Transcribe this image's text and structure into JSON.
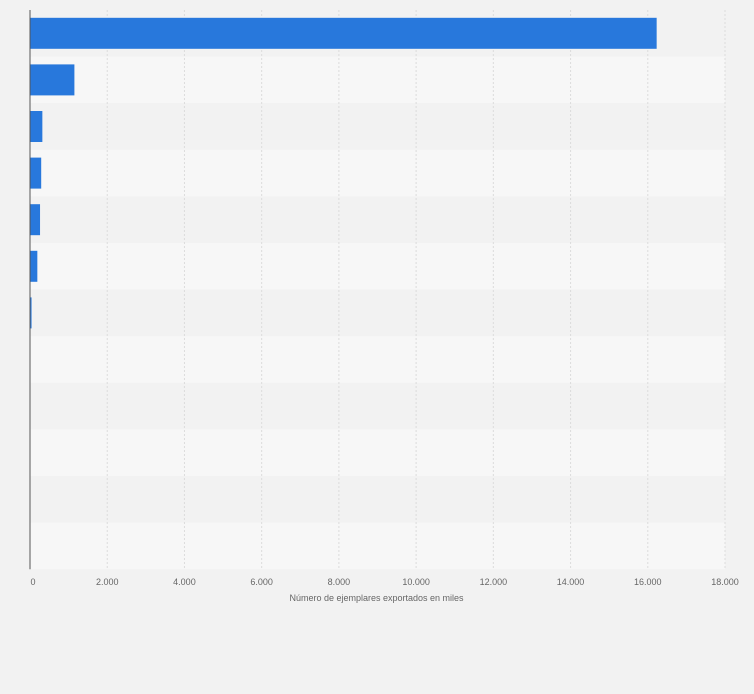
{
  "chart_data": {
    "type": "bar",
    "orientation": "horizontal",
    "categories": [
      "",
      "",
      "",
      "",
      "",
      "",
      "",
      "",
      "",
      "",
      "",
      ""
    ],
    "values": [
      16230,
      1150,
      320,
      290,
      260,
      190,
      40,
      0,
      0,
      0,
      0,
      0
    ],
    "xlabel": "Número de ejemplares exportados en miles",
    "xlim": [
      0,
      18000
    ],
    "x_ticks": [
      0,
      2000,
      4000,
      6000,
      8000,
      10000,
      12000,
      14000,
      16000,
      18000
    ],
    "x_tick_labels": [
      "0",
      "2.000",
      "4.000",
      "6.000",
      "8.000",
      "10.000",
      "12.000",
      "14.000",
      "16.000",
      "18.000"
    ],
    "grid": true,
    "legend": "none",
    "colors": {
      "bar": "#2878dc",
      "band_light": "#f7f7f7",
      "band_dark": "#f2f2f2",
      "grid": "#dcdcdc",
      "axis": "#555555",
      "text": "#666666"
    }
  }
}
